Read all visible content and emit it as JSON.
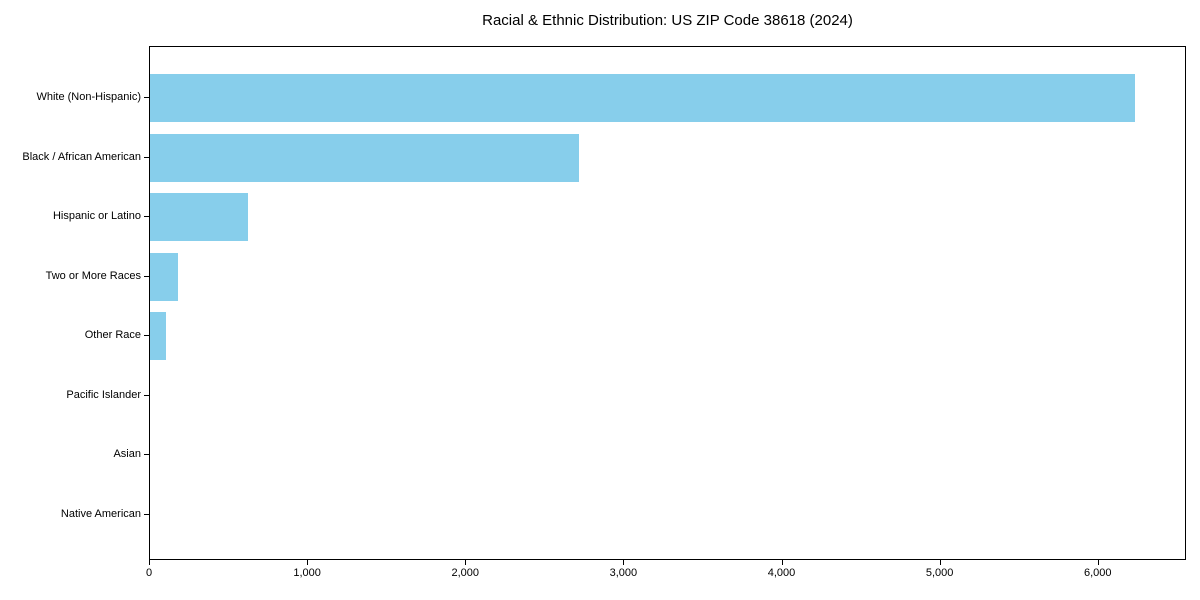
{
  "chart_data": {
    "type": "bar",
    "orientation": "horizontal",
    "title": "Racial & Ethnic Distribution: US ZIP Code 38618 (2024)",
    "categories": [
      "White (Non-Hispanic)",
      "Black / African American",
      "Hispanic or Latino",
      "Two or More Races",
      "Other Race",
      "Pacific Islander",
      "Asian",
      "Native American"
    ],
    "values": [
      6240,
      2720,
      620,
      180,
      100,
      0,
      0,
      0
    ],
    "xlabel": "",
    "ylabel": "",
    "xlim": [
      0,
      6558
    ],
    "x_ticks": [
      0,
      1000,
      2000,
      3000,
      4000,
      5000,
      6000
    ],
    "x_tick_labels": [
      "0",
      "1,000",
      "2,000",
      "3,000",
      "4,000",
      "5,000",
      "6,000"
    ],
    "bar_color": "#87CEEB",
    "background_color": "#FFFFFF",
    "spine_color": "#000000",
    "text_color": "#000000",
    "grid": false,
    "legend_position": "none"
  }
}
